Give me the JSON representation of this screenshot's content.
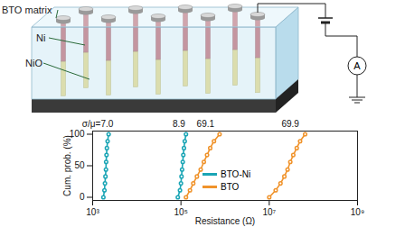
{
  "chart_data": {
    "type": "line",
    "x_label": "Resistance (Ω)",
    "y_label": "Cum. prob. (%)",
    "log": "x",
    "grid": false,
    "marker": "circle",
    "xlim": [
      1000,
      1000000000
    ],
    "xticks": [
      {
        "value": 1000,
        "label": "10³"
      },
      {
        "value": 100000,
        "label": "10⁵"
      },
      {
        "value": 10000000,
        "label": "10⁷"
      },
      {
        "value": 1000000000,
        "label": "10⁹"
      }
    ],
    "ylim": [
      -5,
      105
    ],
    "yticks": [
      0,
      50,
      100
    ],
    "series": [
      {
        "name": "BTO-Ni",
        "color": "#1aa5b5",
        "x": [
          1750,
          1850,
          1900,
          1950,
          2000,
          2020,
          2060,
          2100,
          2180,
          2300
        ],
        "values": [
          0,
          11,
          22,
          33,
          44,
          56,
          67,
          78,
          89,
          100
        ]
      },
      {
        "name": "BTO-Ni",
        "color": "#1aa5b5",
        "x": [
          85000,
          95000,
          100000,
          103000,
          106000,
          110000,
          113000,
          117000,
          122000,
          130000
        ],
        "values": [
          0,
          11,
          22,
          33,
          44,
          56,
          67,
          78,
          89,
          100
        ]
      },
      {
        "name": "BTO",
        "color": "#f0932b",
        "x": [
          130000,
          160000,
          190000,
          230000,
          280000,
          330000,
          390000,
          460000,
          560000,
          750000
        ],
        "values": [
          0,
          11,
          22,
          33,
          44,
          56,
          67,
          78,
          89,
          100
        ]
      },
      {
        "name": "BTO",
        "color": "#f0932b",
        "x": [
          10000000,
          14000000,
          18000000,
          22000000,
          26000000,
          30000000,
          35000000,
          42000000,
          50000000,
          65000000
        ],
        "values": [
          0,
          11,
          22,
          33,
          44,
          56,
          67,
          78,
          89,
          100
        ]
      }
    ],
    "annotations": [
      {
        "text": "σ/μ=7.0",
        "x": 1300
      },
      {
        "text": "8.9",
        "x": 90000
      },
      {
        "text": "69.1",
        "x": 360000
      },
      {
        "text": "69.9",
        "x": 30000000
      }
    ],
    "legend": "inside"
  },
  "diagram": {
    "labels": [
      "BTO matrix",
      "Ni",
      "NiO"
    ],
    "ammeter": "A"
  }
}
